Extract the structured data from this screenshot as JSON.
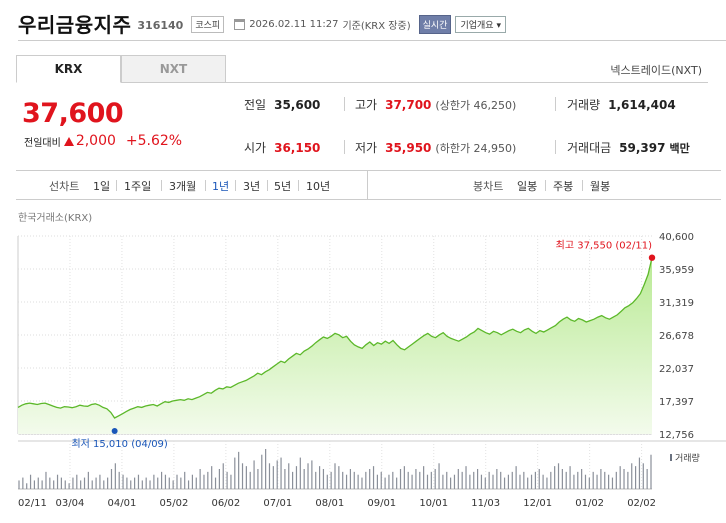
{
  "header": {
    "name": "우리금융지주",
    "code": "316140",
    "market_badge": "코스피",
    "datetime": "2026.02.11 11:27",
    "basis": "기준(KRX 장중)",
    "realtime_label": "실시간",
    "info_label": "기업개요"
  },
  "tabs": [
    {
      "label": "KRX",
      "active": true
    },
    {
      "label": "NXT",
      "active": false
    }
  ],
  "nxt_label": "넥스트레이드(NXT)",
  "price": {
    "current": "37,600",
    "change_label": "전일대비",
    "change_amount": "2,000",
    "change_pct": "+5.62%"
  },
  "quote": {
    "prev_label": "전일",
    "prev": "35,600",
    "high_label": "고가",
    "high": "37,700",
    "upper_label": "(상한가 46,250)",
    "volume_label": "거래량",
    "volume": "1,614,404",
    "open_label": "시가",
    "open": "36,150",
    "low_label": "저가",
    "low": "35,950",
    "lower_label": "(하한가 24,950)",
    "amount_label": "거래대금",
    "amount": "59,397",
    "amount_unit": "백만"
  },
  "period_bar": {
    "line_title": "선차트",
    "line_periods": [
      "1일",
      "1주일",
      "3개월",
      "1년",
      "3년",
      "5년",
      "10년"
    ],
    "selected_period": "1년",
    "candle_title": "봉차트",
    "candle_periods": [
      "일봉",
      "주봉",
      "월봉"
    ]
  },
  "exchange_label": "한국거래소(KRX)",
  "chart_data": {
    "type": "area",
    "title": "",
    "line_color": "#5cb82a",
    "fill_top_color": "#b9ea94",
    "fill_bottom_color": "#f3fbec",
    "y_ticks": [
      "40,600",
      "35,959",
      "31,319",
      "26,678",
      "22,037",
      "17,397",
      "12,756"
    ],
    "ylim": [
      12756,
      40600
    ],
    "x_ticks": [
      "02/11",
      "03/04",
      "04/01",
      "05/02",
      "06/02",
      "07/01",
      "08/01",
      "09/01",
      "10/01",
      "11/03",
      "12/01",
      "01/02",
      "02/02"
    ],
    "annotation_high": "최고 37,550 (02/11)",
    "annotation_low": "최저 15,010 (04/09)",
    "high_value": 37550,
    "low_value": 15010,
    "volume_label": "거래량",
    "values": [
      16500,
      16800,
      17000,
      17100,
      17000,
      16900,
      17050,
      17100,
      16900,
      16700,
      16500,
      16400,
      16600,
      16550,
      16450,
      16600,
      16800,
      16700,
      16650,
      16900,
      17000,
      16800,
      16500,
      16300,
      15800,
      15010,
      15300,
      15600,
      15900,
      16200,
      16400,
      16600,
      16500,
      16700,
      16800,
      16900,
      16700,
      17000,
      17300,
      17200,
      17400,
      17500,
      17600,
      17500,
      17700,
      17600,
      17800,
      18000,
      18300,
      18600,
      18500,
      18900,
      19200,
      19100,
      19400,
      19300,
      19600,
      19900,
      20100,
      20300,
      20600,
      20900,
      21300,
      21100,
      21500,
      21800,
      22200,
      22600,
      23000,
      22800,
      23300,
      23700,
      24100,
      23900,
      24400,
      24700,
      25100,
      25600,
      26000,
      26400,
      26200,
      26500,
      26900,
      26700,
      26300,
      26500,
      25800,
      25300,
      25000,
      24800,
      25300,
      25700,
      25200,
      25600,
      25400,
      25800,
      25500,
      25900,
      25300,
      24800,
      24600,
      25000,
      25400,
      25800,
      26200,
      26600,
      26900,
      26500,
      26300,
      26700,
      27000,
      26500,
      26200,
      26000,
      25800,
      26100,
      26400,
      26800,
      27100,
      27600,
      27300,
      27000,
      26800,
      27200,
      27000,
      26700,
      27000,
      27300,
      27500,
      27200,
      27000,
      27400,
      27600,
      27200,
      26900,
      27300,
      27100,
      27400,
      27700,
      28000,
      28500,
      28900,
      29200,
      28800,
      28600,
      29000,
      28800,
      28500,
      28700,
      28900,
      29200,
      29400,
      29100,
      28900,
      29200,
      29500,
      30000,
      30500,
      30800,
      31200,
      31800,
      32500,
      33800,
      35200,
      37550
    ],
    "volumes": [
      3,
      4,
      2,
      5,
      3,
      4,
      3,
      6,
      4,
      3,
      5,
      4,
      3,
      2,
      4,
      5,
      3,
      4,
      6,
      3,
      4,
      5,
      3,
      4,
      7,
      9,
      6,
      5,
      4,
      3,
      4,
      5,
      3,
      4,
      3,
      5,
      4,
      6,
      5,
      4,
      3,
      5,
      4,
      6,
      3,
      5,
      4,
      7,
      5,
      6,
      8,
      4,
      7,
      9,
      6,
      5,
      11,
      13,
      9,
      8,
      6,
      10,
      7,
      12,
      14,
      9,
      8,
      10,
      11,
      7,
      9,
      6,
      8,
      11,
      7,
      9,
      10,
      6,
      8,
      7,
      5,
      6,
      9,
      8,
      6,
      5,
      7,
      6,
      5,
      4,
      6,
      7,
      8,
      5,
      6,
      4,
      5,
      6,
      4,
      7,
      8,
      6,
      5,
      7,
      6,
      8,
      5,
      6,
      7,
      9,
      5,
      6,
      4,
      5,
      7,
      6,
      8,
      5,
      6,
      7,
      5,
      4,
      6,
      5,
      7,
      6,
      4,
      5,
      6,
      8,
      5,
      6,
      4,
      5,
      6,
      7,
      5,
      4,
      6,
      8,
      9,
      7,
      6,
      8,
      5,
      6,
      7,
      5,
      4,
      6,
      5,
      7,
      6,
      5,
      4,
      6,
      8,
      7,
      6,
      9,
      8,
      11,
      9,
      7,
      12
    ]
  }
}
